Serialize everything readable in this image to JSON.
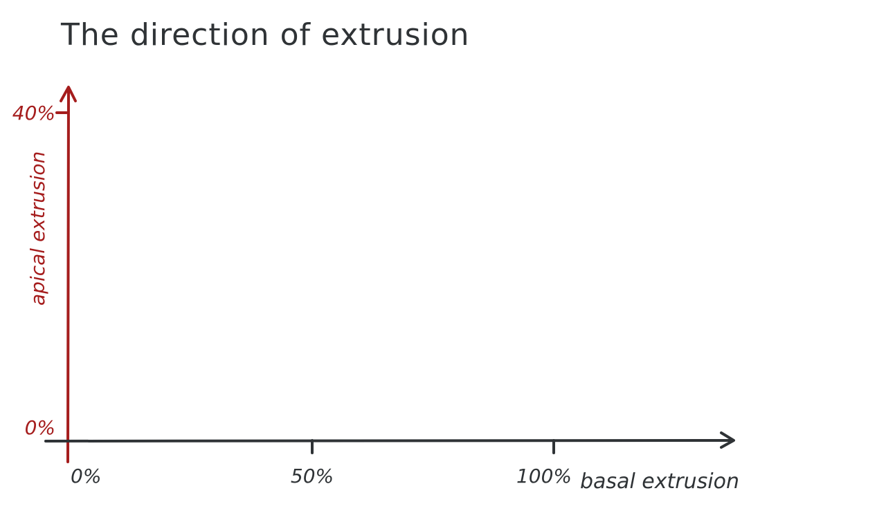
{
  "chart_data": {
    "type": "scatter",
    "title": "The direction of extrusion",
    "xlabel": "basal extrusion",
    "ylabel": "apical extrusion",
    "xlim": [
      0,
      100
    ],
    "ylim": [
      0,
      40
    ],
    "x_ticks": [
      {
        "value": 0,
        "label": "0%"
      },
      {
        "value": 50,
        "label": "50%"
      },
      {
        "value": 100,
        "label": "100%"
      }
    ],
    "y_ticks": [
      {
        "value": 0,
        "label": "0%"
      },
      {
        "value": 40,
        "label": "40%"
      }
    ],
    "series": [],
    "grid": false,
    "colors": {
      "x_axis": "#2f3336",
      "y_axis": "#a51d1d"
    }
  }
}
